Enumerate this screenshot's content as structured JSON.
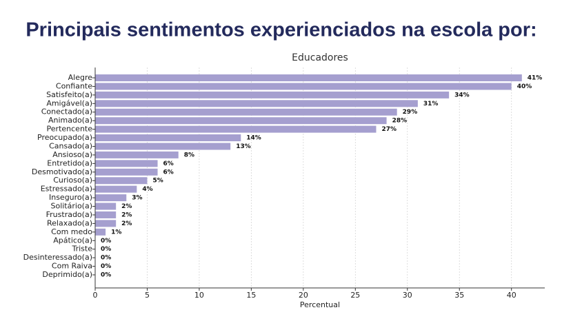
{
  "heading": "Principais sentimentos experienciados na escola por:",
  "chart_data": {
    "type": "hbar",
    "title": "Educadores",
    "x_label": "Percentual",
    "categories": [
      "Alegre",
      "Confiante",
      "Satisfeito(a)",
      "Amigável(a)",
      "Conectado(a)",
      "Animado(a)",
      "Pertencente",
      "Preocupado(a)",
      "Cansado(a)",
      "Ansioso(a)",
      "Entretido(a)",
      "Desmotivado(a)",
      "Curioso(a)",
      "Estressado(a)",
      "Inseguro(a)",
      "Solitário(a)",
      "Frustrado(a)",
      "Relaxado(a)",
      "Com medo",
      "Apático(a)",
      "Triste",
      "Desinteressado(a)",
      "Com Raiva",
      "Deprimido(a)"
    ],
    "values": [
      41,
      40,
      34,
      31,
      29,
      28,
      27,
      14,
      13,
      8,
      6,
      6,
      5,
      4,
      3,
      2,
      2,
      2,
      1,
      0,
      0,
      0,
      0,
      0
    ],
    "value_labels": [
      "41%",
      "40%",
      "34%",
      "31%",
      "29%",
      "28%",
      "27%",
      "14%",
      "13%",
      "8%",
      "6%",
      "6%",
      "5%",
      "4%",
      "3%",
      "2%",
      "2%",
      "2%",
      "1%",
      "0%",
      "0%",
      "0%",
      "0%",
      "0%"
    ],
    "color": "#a59fcf",
    "xlim": [
      0,
      43.2
    ],
    "xticks": [
      0,
      5,
      10,
      15,
      20,
      25,
      30,
      35,
      40
    ],
    "grid": true
  }
}
